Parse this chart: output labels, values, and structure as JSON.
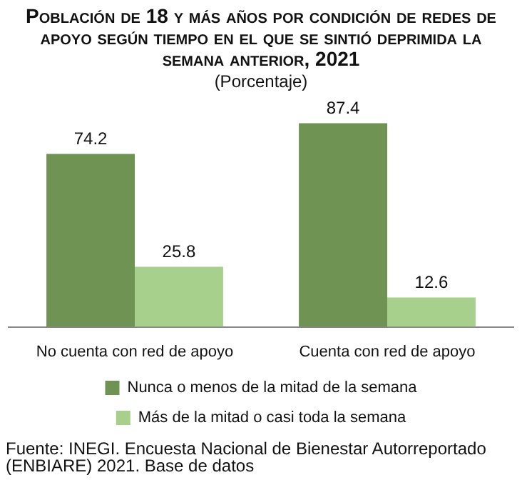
{
  "chart_data": {
    "type": "bar",
    "title": "Población de 18 y más años por condición de redes de apoyo según tiempo en el que se sintió deprimida la semana anterior, 2021",
    "subtitle": "(Porcentaje)",
    "categories": [
      "No cuenta con red de apoyo",
      "Cuenta con red de apoyo"
    ],
    "series": [
      {
        "name": "Nunca o menos de la mitad de la semana",
        "color": "#6e9352",
        "values": [
          74.2,
          87.4
        ]
      },
      {
        "name": "Más de la mitad o casi toda la semana",
        "color": "#a8d08d",
        "values": [
          25.8,
          12.6
        ]
      }
    ],
    "data_labels": true,
    "legend": "bottom",
    "grid": false,
    "annotations": [
      "Fuente: INEGI. Encuesta Nacional de Bienestar Autorreportado (ENBIARE) 2021. Base de datos"
    ]
  }
}
